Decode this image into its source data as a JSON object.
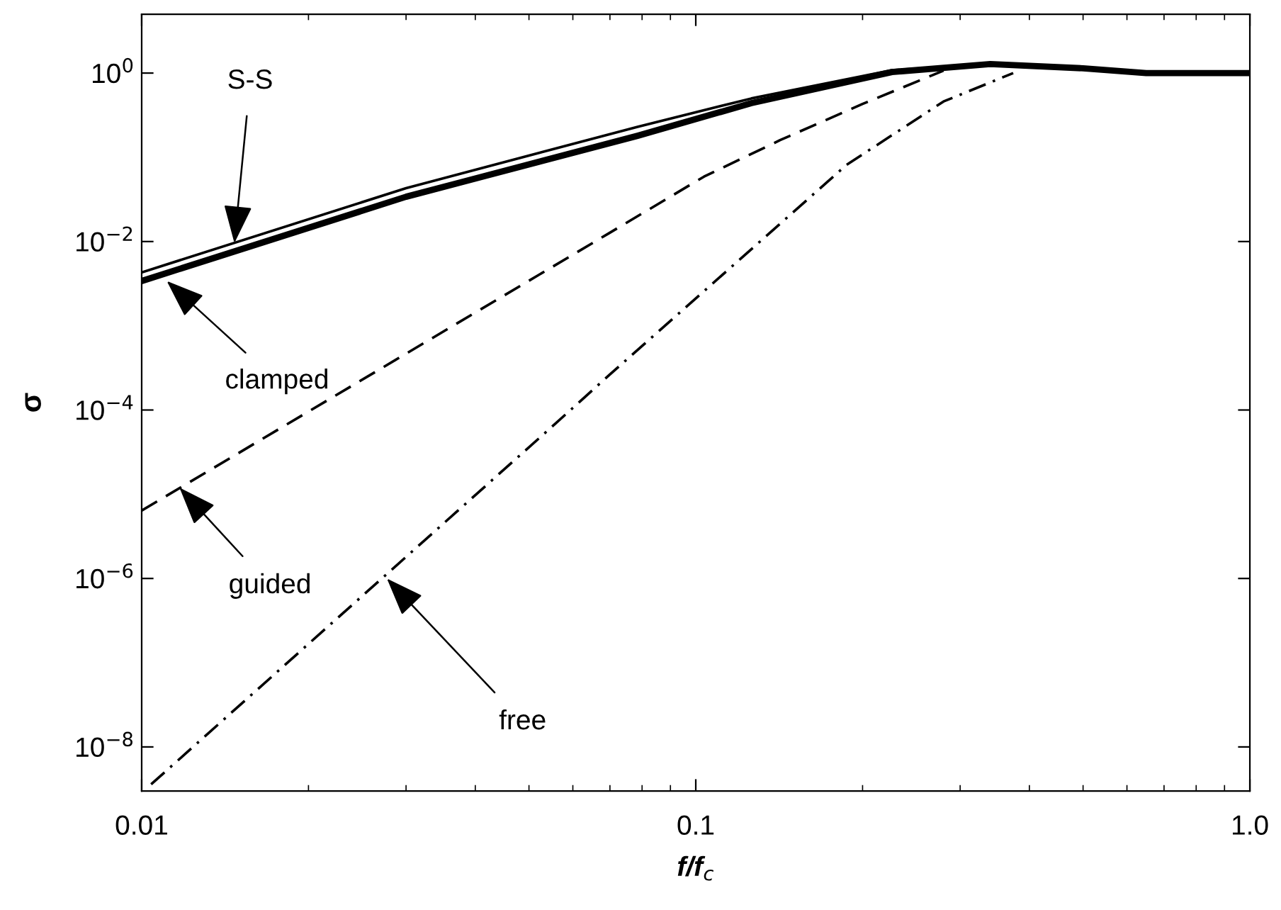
{
  "chart_data": {
    "type": "line",
    "xlabel": "f/f$_{c}$",
    "ylabel": "σ",
    "log": "xy",
    "grid": false,
    "legend": false,
    "xlim": [
      0.01,
      1.0
    ],
    "xticks": [
      0.01,
      0.1,
      {
        "value": 1.0,
        "label": "1.0"
      }
    ],
    "ylim": [
      3e-09,
      5
    ],
    "yticks": [
      {
        "value": 1e-08,
        "label": "10$^{−8}$"
      },
      {
        "value": 1e-06,
        "label": "10$^{−6}$"
      },
      {
        "value": 0.0001,
        "label": "10$^{−4}$"
      },
      {
        "value": 0.01,
        "label": "10$^{−2}$"
      },
      {
        "value": 1,
        "label": "10$^{0}$"
      }
    ],
    "series": [
      {
        "color": "#000000",
        "line_style": "solid",
        "x": [
          0.01,
          0.03,
          0.0785,
          0.126,
          0.226,
          0.34,
          0.5,
          0.65,
          1.0
        ],
        "values": [
          0.0043,
          0.043,
          0.23,
          0.5,
          1.08,
          1.28,
          1.14,
          1.0,
          1.0
        ]
      },
      {
        "color": "#000000",
        "line_style": "solid",
        "x": [
          0.01,
          0.03,
          0.0785,
          0.126,
          0.226,
          0.34,
          0.5,
          0.65,
          1.0
        ],
        "values": [
          0.0034,
          0.034,
          0.18,
          0.44,
          1.03,
          1.28,
          1.14,
          1.0,
          1.0
        ]
      },
      {
        "color": "#000000",
        "line_style": "dashed",
        "x": [
          0.01,
          0.0698,
          0.1035,
          0.142,
          0.2,
          0.28
        ],
        "values": [
          6.4e-06,
          0.0126,
          0.059,
          0.16,
          0.43,
          1.07
        ]
      },
      {
        "color": "#000000",
        "line_style": "dashdot",
        "x": [
          0.0104,
          0.0542,
          0.0698,
          0.187,
          0.28,
          0.374
        ],
        "values": [
          3.6e-09,
          5.8e-05,
          0.00026,
          0.081,
          0.46,
          1.0
        ]
      }
    ],
    "annotations": [
      {
        "text": "S-S",
        "x": 0.0147,
        "y": 0.0096
      },
      {
        "text": "clamped",
        "x": 0.0111,
        "y": 0.0034
      },
      {
        "text": "guided",
        "x": 0.0117,
        "y": 1.2e-05
      },
      {
        "text": "free",
        "x": 0.0277,
        "y": 1e-06
      }
    ]
  }
}
